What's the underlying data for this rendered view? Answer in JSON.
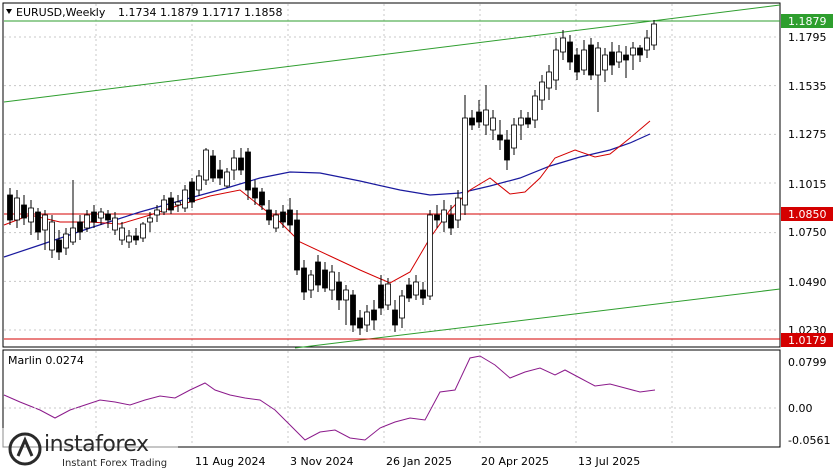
{
  "header": {
    "symbol_timeframe": "EURUSD,Weekly",
    "ohlc": "1.1734 1.1879 1.1717 1.1858"
  },
  "price_axis": {
    "ticks": [
      "1.1795",
      "1.1535",
      "1.1275",
      "1.1015",
      "1.0750",
      "1.0490",
      "1.0230"
    ],
    "highlights": [
      {
        "label": "1.1879",
        "color": "#2e9e2e"
      },
      {
        "label": "1.0850",
        "color": "#d40000"
      },
      {
        "label": "1.0179",
        "color": "#d40000"
      }
    ]
  },
  "time_axis": {
    "ticks": [
      "11 Aug 2024",
      "3 Nov 2024",
      "26 Jan 2025",
      "20 Apr 2025",
      "13 Jul 2025"
    ]
  },
  "indicator": {
    "label": "Marlin 0.0274",
    "ticks": [
      "0.0799",
      "0.00",
      "-0.0561"
    ],
    "color": "#8b1a8b"
  },
  "logo": {
    "name": "instaforex",
    "tagline": "Instant Forex Trading"
  },
  "colors": {
    "background": "#ffffff",
    "grid": "#c8c8c8",
    "bull_candle": "#ffffff",
    "bear_candle": "#000000",
    "channel": "#2e9e2e",
    "ma_fast": "#d40000",
    "ma_slow": "#1a1a9e",
    "level_line": "#d40000"
  }
}
